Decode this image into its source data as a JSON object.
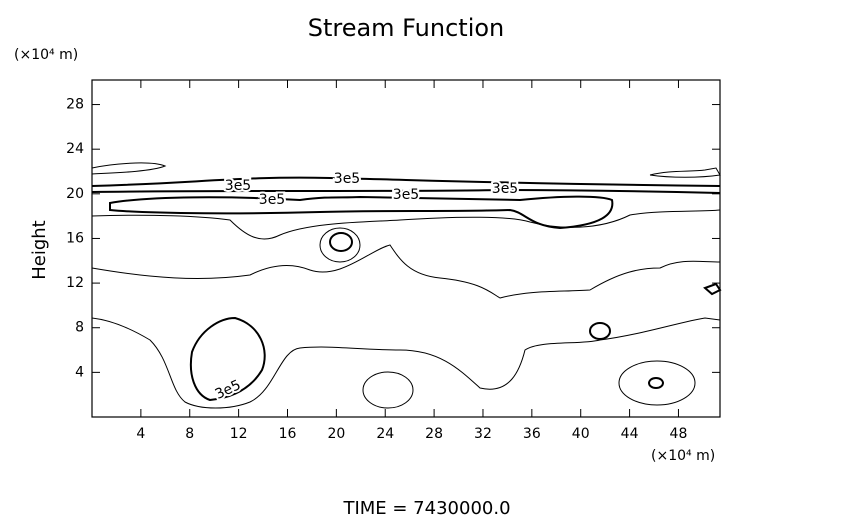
{
  "chart_data": {
    "type": "contour",
    "title": "Stream Function",
    "y_unit": "(×10⁴ m)",
    "x_unit": "(×10⁴ m)",
    "ylabel": "Height",
    "footer": "TIME = 7430000.0",
    "xlim": [
      0,
      51.4
    ],
    "xticks": [
      4,
      8,
      12,
      16,
      20,
      24,
      28,
      32,
      36,
      40,
      44,
      48
    ],
    "ylim": [
      0,
      30.2
    ],
    "yticks": [
      4,
      8,
      12,
      16,
      20,
      24,
      28
    ],
    "contour_labels": [
      "3e5",
      "3e5",
      "3e5",
      "3e5",
      "3e5",
      "3e5"
    ]
  }
}
